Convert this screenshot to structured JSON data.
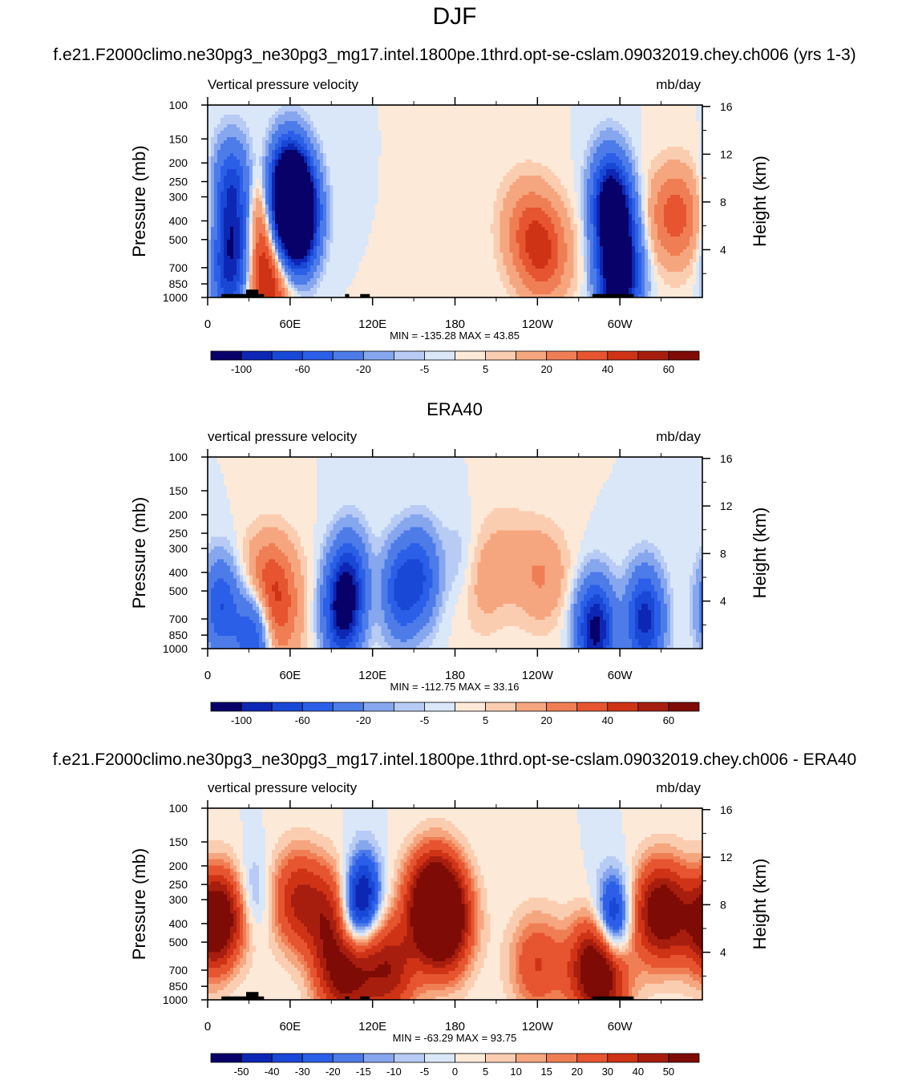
{
  "page_title": "DJF",
  "chart_data": [
    {
      "type": "heatmap",
      "title": "f.e21.F2000climo.ne30pg3_ne30pg3_mg17.intel.1800pe.1thrd.opt-se-cslam.09032019.chey.ch006 (yrs 1-3)",
      "subtitle": "Vertical pressure velocity",
      "units": "mb/day",
      "ylabel": "Pressure (mb)",
      "y2label": "Height (km)",
      "x_ticks": [
        "0",
        "60E",
        "120E",
        "180",
        "120W",
        "60W"
      ],
      "x_range": [
        0,
        360
      ],
      "y_ticks": [
        "100",
        "150",
        "200",
        "250",
        "300",
        "400",
        "500",
        "700",
        "850",
        "1000"
      ],
      "y_range_mb": [
        1000,
        100
      ],
      "y2_ticks": [
        "16",
        "12",
        "8",
        "4"
      ],
      "stats": "MIN = -135.28  MAX =  43.85",
      "colorbar_labels": [
        "-100",
        "-60",
        "-20",
        "-5",
        "5",
        "20",
        "40",
        "60"
      ],
      "colorbar_colors": [
        "#08016a",
        "#0d27b4",
        "#1a48d6",
        "#2c5fe8",
        "#4d7ce9",
        "#86a6ee",
        "#b7cbf4",
        "#d9e7f9",
        "#fde9d8",
        "#fbcdb0",
        "#f6a67f",
        "#f07e54",
        "#e65530",
        "#cf3316",
        "#a81e0e",
        "#7f0b06"
      ],
      "lows": [
        [
          58,
          300,
          -120
        ],
        [
          60,
          280,
          -110
        ],
        [
          65,
          450,
          -95
        ],
        [
          68,
          350,
          -100
        ],
        [
          18,
          270,
          -70
        ],
        [
          19,
          500,
          -70
        ],
        [
          16,
          800,
          -60
        ],
        [
          297,
          420,
          -110
        ],
        [
          292,
          300,
          -80
        ],
        [
          296,
          800,
          -95
        ],
        [
          305,
          800,
          -55
        ]
      ],
      "highs": [
        [
          39,
          400,
          40
        ],
        [
          44,
          880,
          44
        ],
        [
          245,
          600,
          35
        ],
        [
          232,
          420,
          22
        ],
        [
          340,
          380,
          36
        ]
      ],
      "masks": [
        [
          10,
          30,
          960
        ],
        [
          28,
          37,
          910
        ],
        [
          37,
          41,
          960
        ],
        [
          100,
          103,
          960
        ],
        [
          111,
          118,
          960
        ],
        [
          280,
          310,
          960
        ]
      ]
    },
    {
      "type": "heatmap",
      "title": "ERA40",
      "subtitle": "vertical pressure velocity",
      "units": "mb/day",
      "ylabel": "Pressure (mb)",
      "y2label": "Height (km)",
      "x_ticks": [
        "0",
        "60E",
        "120E",
        "180",
        "120W",
        "60W"
      ],
      "x_range": [
        0,
        360
      ],
      "y_ticks": [
        "100",
        "150",
        "200",
        "250",
        "300",
        "400",
        "500",
        "700",
        "850",
        "1000"
      ],
      "y_range_mb": [
        1000,
        100
      ],
      "y2_ticks": [
        "16",
        "12",
        "8",
        "4"
      ],
      "stats": "MIN = -112.75  MAX =  33.16",
      "colorbar_labels": [
        "-100",
        "-60",
        "-20",
        "-5",
        "5",
        "20",
        "40",
        "60"
      ],
      "colorbar_colors": [
        "#08016a",
        "#0d27b4",
        "#1a48d6",
        "#2c5fe8",
        "#4d7ce9",
        "#86a6ee",
        "#b7cbf4",
        "#d9e7f9",
        "#fde9d8",
        "#fbcdb0",
        "#f6a67f",
        "#f07e54",
        "#e65530",
        "#cf3316",
        "#a81e0e",
        "#7f0b06"
      ],
      "lows": [
        [
          98,
          650,
          -100
        ],
        [
          103,
          430,
          -60
        ],
        [
          140,
          500,
          -60
        ],
        [
          155,
          420,
          -55
        ],
        [
          10,
          600,
          -60
        ],
        [
          33,
          850,
          -70
        ],
        [
          282,
          800,
          -110
        ],
        [
          318,
          700,
          -90
        ],
        [
          183,
          350,
          -10
        ]
      ],
      "highs": [
        [
          45,
          450,
          33
        ],
        [
          48,
          750,
          25
        ],
        [
          243,
          420,
          20
        ],
        [
          200,
          480,
          12
        ],
        [
          215,
          300,
          8
        ]
      ],
      "masks": []
    },
    {
      "type": "heatmap",
      "title": "f.e21.F2000climo.ne30pg3_ne30pg3_mg17.intel.1800pe.1thrd.opt-se-cslam.09032019.chey.ch006 - ERA40",
      "subtitle": "vertical pressure velocity",
      "units": "mb/day",
      "ylabel": "Pressure (mb)",
      "y2label": "Height (km)",
      "x_ticks": [
        "0",
        "60E",
        "120E",
        "180",
        "120W",
        "60W"
      ],
      "x_range": [
        0,
        360
      ],
      "y_ticks": [
        "100",
        "150",
        "200",
        "250",
        "300",
        "400",
        "500",
        "700",
        "850",
        "1000"
      ],
      "y_range_mb": [
        1000,
        100
      ],
      "y2_ticks": [
        "16",
        "12",
        "8",
        "4"
      ],
      "stats": "MIN = -63.29  MAX =  93.75",
      "colorbar_labels": [
        "-50",
        "-40",
        "-30",
        "-20",
        "-15",
        "-10",
        "-5",
        "0",
        "5",
        "10",
        "15",
        "20",
        "30",
        "40",
        "50"
      ],
      "colorbar_colors": [
        "#08016a",
        "#0d27b4",
        "#1a48d6",
        "#2c5fe8",
        "#4d7ce9",
        "#86a6ee",
        "#b7cbf4",
        "#d9e7f9",
        "#fde9d8",
        "#fbcdb0",
        "#f6a67f",
        "#f07e54",
        "#e65530",
        "#cf3316",
        "#a81e0e",
        "#7f0b06"
      ],
      "lows": [
        [
          113,
          300,
          -60
        ],
        [
          102,
          420,
          -45
        ],
        [
          295,
          400,
          -55
        ],
        [
          33,
          300,
          -20
        ],
        [
          17,
          500,
          -15
        ]
      ],
      "highs": [
        [
          9,
          400,
          80
        ],
        [
          96,
          380,
          45
        ],
        [
          66,
          300,
          40
        ],
        [
          165,
          300,
          70
        ],
        [
          172,
          420,
          55
        ],
        [
          330,
          350,
          65
        ],
        [
          285,
          700,
          80
        ],
        [
          100,
          700,
          60
        ],
        [
          132,
          700,
          45
        ],
        [
          240,
          650,
          30
        ]
      ],
      "masks": [
        [
          10,
          30,
          960
        ],
        [
          28,
          37,
          910
        ],
        [
          37,
          41,
          960
        ],
        [
          100,
          103,
          960
        ],
        [
          111,
          118,
          960
        ],
        [
          280,
          310,
          960
        ]
      ]
    }
  ]
}
